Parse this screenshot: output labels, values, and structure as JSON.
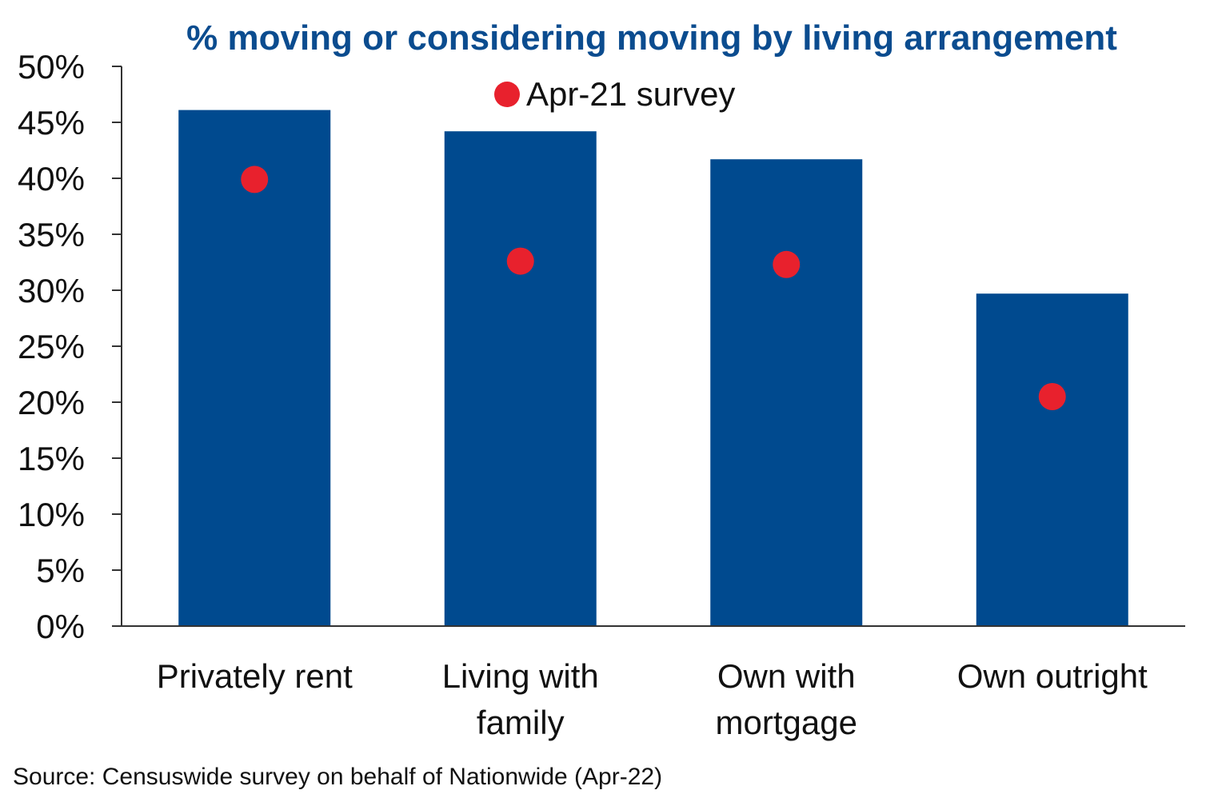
{
  "chart_data": {
    "type": "bar",
    "title": "% moving or considering moving by living arrangement",
    "categories": [
      [
        "Privately rent"
      ],
      [
        "Living with",
        "family"
      ],
      [
        "Own with",
        "mortgage"
      ],
      [
        "Own outright"
      ]
    ],
    "series": [
      {
        "type": "bar",
        "values": [
          46.1,
          44.2,
          41.7,
          29.7
        ]
      },
      {
        "name": "Apr-21 survey",
        "type": "scatter",
        "values": [
          39.9,
          32.6,
          32.3,
          20.5
        ]
      }
    ],
    "ylim": [
      0,
      50
    ],
    "yticks": [
      "0%",
      "5%",
      "10%",
      "15%",
      "20%",
      "25%",
      "30%",
      "35%",
      "40%",
      "45%",
      "50%"
    ],
    "legend": "top-center",
    "grid": false,
    "colors": {
      "bar": "#004a8f",
      "dot": "#e8212d",
      "title": "#0b4c8f"
    },
    "source": "Source: Censuswide survey on behalf of Nationwide (Apr-22)"
  }
}
